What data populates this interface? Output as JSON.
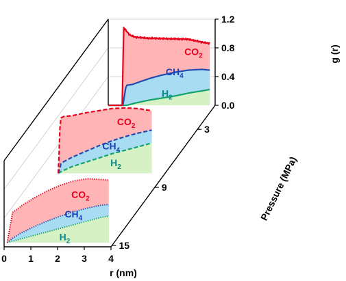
{
  "chart_data": {
    "type": "area",
    "subtype": "3d-waterfall-stacked-area",
    "x_axis": {
      "label": "r  (nm)",
      "range": [
        0,
        4
      ],
      "ticks": [
        "0",
        "1",
        "2",
        "3",
        "4"
      ]
    },
    "y_axis": {
      "label": "g (r)",
      "range": [
        0,
        1.2
      ],
      "ticks": [
        "0.0",
        "0.4",
        "0.8",
        "1.2"
      ]
    },
    "z_axis": {
      "label": "Pressure (MPa)",
      "ticks": [
        "3",
        "9",
        "15"
      ]
    },
    "grid": true,
    "colors": {
      "CO2_fill": "#ffb5b5",
      "CO2_line": "#e8001c",
      "CH4_fill": "#a8dcf2",
      "CH4_line": "#1f4bb0",
      "H2_fill": "#d6f2c4",
      "H2_line": "#12a36a",
      "CO2_text": "#e8001c",
      "CH4_text": "#1a3fb8",
      "H2_text": "#0a8a8a"
    },
    "panels": [
      {
        "pressure": "3",
        "line_style": "solid",
        "labels": {
          "CO2": [
            "CO",
            "2"
          ],
          "CH4": [
            "CH",
            "4"
          ],
          "H2": [
            "H",
            "2"
          ]
        },
        "series": {
          "CO2": {
            "x": [
              0.0,
              0.3,
              0.52,
              0.58,
              0.65,
              0.8,
              1.0,
              1.5,
              2.0,
              2.5,
              3.0,
              3.5,
              3.8
            ],
            "y": [
              0.0,
              0.0,
              0.0,
              1.08,
              1.05,
              0.98,
              0.95,
              0.935,
              0.93,
              0.925,
              0.92,
              0.88,
              0.86
            ]
          },
          "CH4": {
            "x": [
              0.0,
              0.35,
              0.55,
              0.65,
              0.7,
              0.9,
              1.2,
              1.6,
              2.0,
              2.5,
              3.0,
              3.5,
              3.8
            ],
            "y": [
              0.0,
              0.0,
              0.0,
              0.24,
              0.28,
              0.29,
              0.33,
              0.38,
              0.42,
              0.46,
              0.49,
              0.5,
              0.49
            ]
          },
          "H2": {
            "x": [
              0.0,
              0.5,
              0.7,
              1.0,
              1.5,
              2.0,
              2.5,
              3.0,
              3.5,
              3.8
            ],
            "y": [
              0.0,
              0.0,
              0.0,
              0.03,
              0.07,
              0.1,
              0.13,
              0.17,
              0.2,
              0.22
            ]
          }
        }
      },
      {
        "pressure": "9",
        "line_style": "dashed",
        "labels": {
          "CO2": [
            "CO",
            "2"
          ],
          "CH4": [
            "CH",
            "4"
          ],
          "H2": [
            "H",
            "2"
          ]
        },
        "series": {
          "CO2": {
            "x": [
              0.0,
              0.03,
              0.06,
              0.1,
              0.2,
              0.5,
              1.0,
              1.5,
              2.0,
              2.5,
              3.0,
              3.5
            ],
            "y": [
              0.0,
              0.25,
              0.62,
              0.77,
              0.79,
              0.8,
              0.84,
              0.87,
              0.9,
              0.91,
              0.9,
              0.87
            ]
          },
          "CH4": {
            "x": [
              0.0,
              0.05,
              0.1,
              0.2,
              0.5,
              1.0,
              1.5,
              2.0,
              2.5,
              3.0,
              3.5
            ],
            "y": [
              0.0,
              0.05,
              0.13,
              0.16,
              0.22,
              0.3,
              0.38,
              0.45,
              0.51,
              0.56,
              0.6
            ]
          },
          "H2": {
            "x": [
              0.0,
              0.2,
              0.5,
              1.0,
              1.5,
              2.0,
              2.5,
              3.0,
              3.5
            ],
            "y": [
              0.0,
              0.04,
              0.09,
              0.15,
              0.21,
              0.27,
              0.32,
              0.37,
              0.42
            ]
          }
        }
      },
      {
        "pressure": "15",
        "line_style": "dotted",
        "labels": {
          "CO2": [
            "CO",
            "2"
          ],
          "CH4": [
            "CH",
            "4"
          ],
          "H2": [
            "H",
            "2"
          ]
        },
        "series": {
          "CO2": {
            "x": [
              0.0,
              0.12,
              0.2,
              0.35,
              0.6,
              1.0,
              1.5,
              2.0,
              2.5,
              3.0,
              3.5,
              3.8
            ],
            "y": [
              0.0,
              0.25,
              0.42,
              0.46,
              0.53,
              0.62,
              0.72,
              0.8,
              0.86,
              0.89,
              0.88,
              0.87
            ]
          },
          "CH4": {
            "x": [
              0.0,
              0.2,
              0.5,
              1.0,
              1.5,
              2.0,
              2.5,
              3.0,
              3.5,
              3.8
            ],
            "y": [
              0.0,
              0.06,
              0.13,
              0.22,
              0.3,
              0.37,
              0.43,
              0.48,
              0.52,
              0.53
            ]
          },
          "H2": {
            "x": [
              0.0,
              0.3,
              0.6,
              1.0,
              1.5,
              2.0,
              2.5,
              3.0,
              3.5,
              3.8
            ],
            "y": [
              0.0,
              0.03,
              0.06,
              0.1,
              0.15,
              0.2,
              0.25,
              0.3,
              0.35,
              0.37
            ]
          }
        }
      }
    ]
  }
}
